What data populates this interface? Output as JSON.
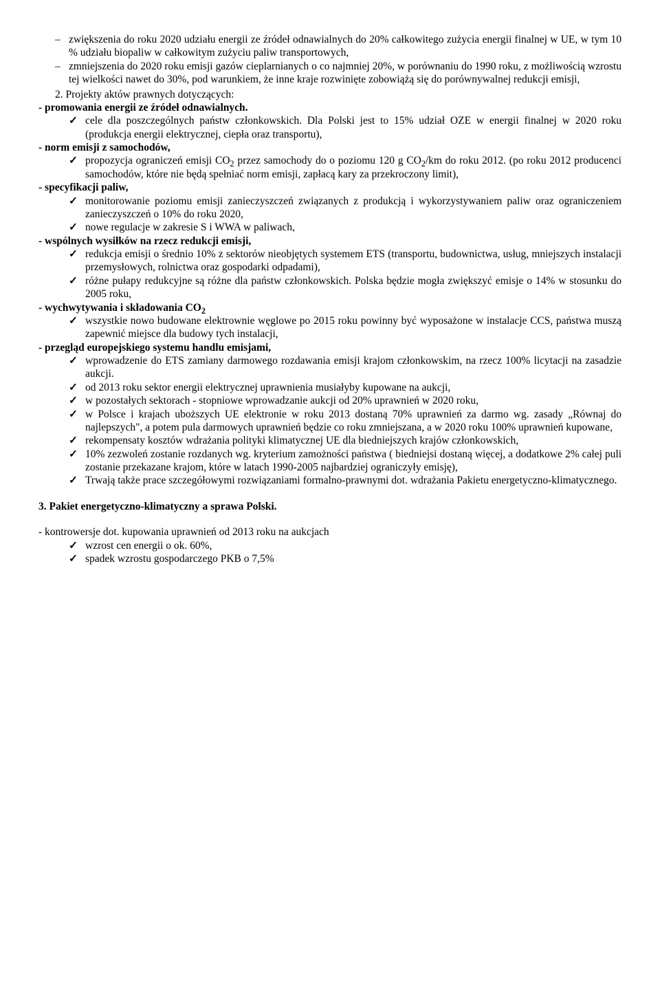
{
  "dash_items": [
    "zwiększenia do roku 2020 udziału energii ze źródeł odnawialnych do 20% całkowitego zużycia energii finalnej w UE, w tym 10 % udziału biopaliw w całkowitym zużyciu paliw transportowych,",
    "zmniejszenia do 2020 roku emisji gazów cieplarnianych o co najmniej 20%, w porównaniu do 1990 roku, z możliwością wzrostu tej wielkości nawet do 30%, pod warunkiem, że inne kraje rozwinięte zobowiążą się do porównywalnej redukcji emisji,"
  ],
  "num_item": "2. Projekty aktów prawnych dotyczących:",
  "sections": [
    {
      "heading": "- promowania energii ze źródeł odnawialnych.",
      "items": [
        "cele dla poszczególnych państw członkowskich. Dla Polski jest to 15% udział OZE w energii finalnej w 2020 roku (produkcja energii elektrycznej, ciepła oraz transportu),"
      ]
    },
    {
      "heading": "- norm emisji z samochodów,",
      "items": [
        "propozycja ograniczeń emisji CO<span class=\"sub\">2</span> przez samochody do o poziomu 120 g CO<span class=\"sub\">2</span>/km do roku 2012. (po roku 2012 producenci samochodów, które nie będą spełniać norm emisji, zapłacą kary za przekroczony limit),"
      ]
    },
    {
      "heading": "- specyfikacji paliw,",
      "items": [
        "monitorowanie poziomu emisji zanieczyszczeń związanych z produkcją i wykorzystywaniem paliw oraz ograniczeniem zanieczyszczeń o 10% do roku 2020,",
        "nowe regulacje w zakresie S i WWA w paliwach,"
      ]
    },
    {
      "heading": "- wspólnych wysiłków na rzecz redukcji emisji,",
      "items": [
        "redukcja emisji o średnio 10% z sektorów nieobjętych systemem ETS (transportu, budownictwa, usług, mniejszych instalacji przemysłowych, rolnictwa oraz gospodarki odpadami),",
        "różne pułapy redukcyjne są różne dla państw członkowskich. Polska będzie mogła zwiększyć emisje o 14% w stosunku do 2005 roku,"
      ]
    },
    {
      "heading": "- wychwytywania i składowania CO<span class=\"sub\">2</span>",
      "items": [
        "wszystkie nowo budowane elektrownie węglowe po 2015 roku powinny być wyposażone w instalacje CCS, państwa muszą zapewnić miejsce dla budowy tych instalacji,"
      ]
    },
    {
      "heading": "- przegląd europejskiego systemu handlu emisjami,",
      "items": [
        "wprowadzenie do ETS zamiany darmowego rozdawania emisji krajom członkowskim, na rzecz 100% licytacji na zasadzie aukcji.",
        "od 2013 roku sektor energii elektrycznej uprawnienia musiałyby kupowane na aukcji,",
        "w pozostałych sektorach -  stopniowe wprowadzanie aukcji od 20% uprawnień w 2020 roku,",
        "w Polsce i krajach uboższych UE elektronie w roku 2013 dostaną 70% uprawnień za darmo wg. zasady „Równaj do najlepszych\", a potem pula darmowych uprawnień będzie co roku zmniejszana, a w  2020 roku 100% uprawnień kupowane,",
        "rekompensaty kosztów wdrażania polityki klimatycznej UE dla biedniejszych krajów członkowskich,",
        "10% zezwoleń zostanie rozdanych wg. kryterium zamożności państwa ( biedniejsi dostaną więcej, a dodatkowe 2% całej puli zostanie przekazane krajom, które w latach 1990-2005 najbardziej ograniczyły emisję),",
        "Trwają także prace szczegółowymi rozwiązaniami formalno-prawnymi dot. wdrażania Pakietu energetyczno-klimatycznego."
      ]
    }
  ],
  "section3_title": "3. Pakiet energetyczno-klimatyczny a sprawa Polski.",
  "footer_line": "- kontrowersje dot. kupowania uprawnień od 2013 roku na aukcjach",
  "footer_items": [
    "wzrost cen energii o ok. 60%,",
    "spadek wzrostu gospodarczego PKB o 7,5%"
  ]
}
